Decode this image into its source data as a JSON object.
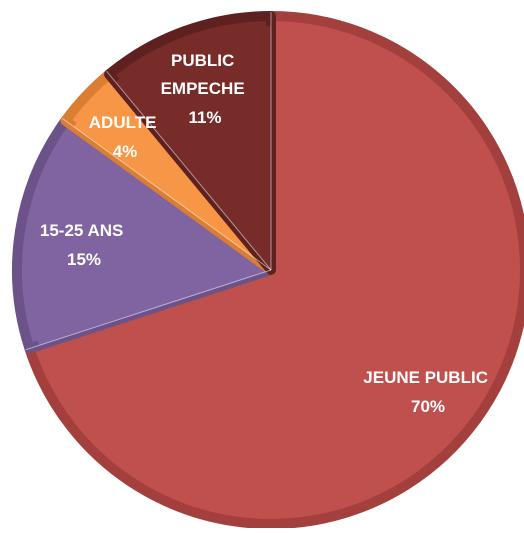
{
  "chart_data": {
    "type": "pie",
    "start_angle_deg": 0,
    "direction": "clockwise",
    "slices": [
      {
        "label": "JEUNE PUBLIC",
        "value": 70,
        "value_label": "70%",
        "color": "#c0504d",
        "edge": "#a33f3c"
      },
      {
        "label": "15-25 ANS",
        "value": 15,
        "value_label": "15%",
        "color": "#8064a2",
        "edge": "#6b5289"
      },
      {
        "label": "ADULTE",
        "value": 4,
        "value_label": "4%",
        "color": "#f79646",
        "edge": "#d97e32"
      },
      {
        "label": "PUBLIC EMPECHE",
        "value": 11,
        "value_label": "11%",
        "color": "#772c2a",
        "edge": "#5e2120"
      }
    ]
  }
}
